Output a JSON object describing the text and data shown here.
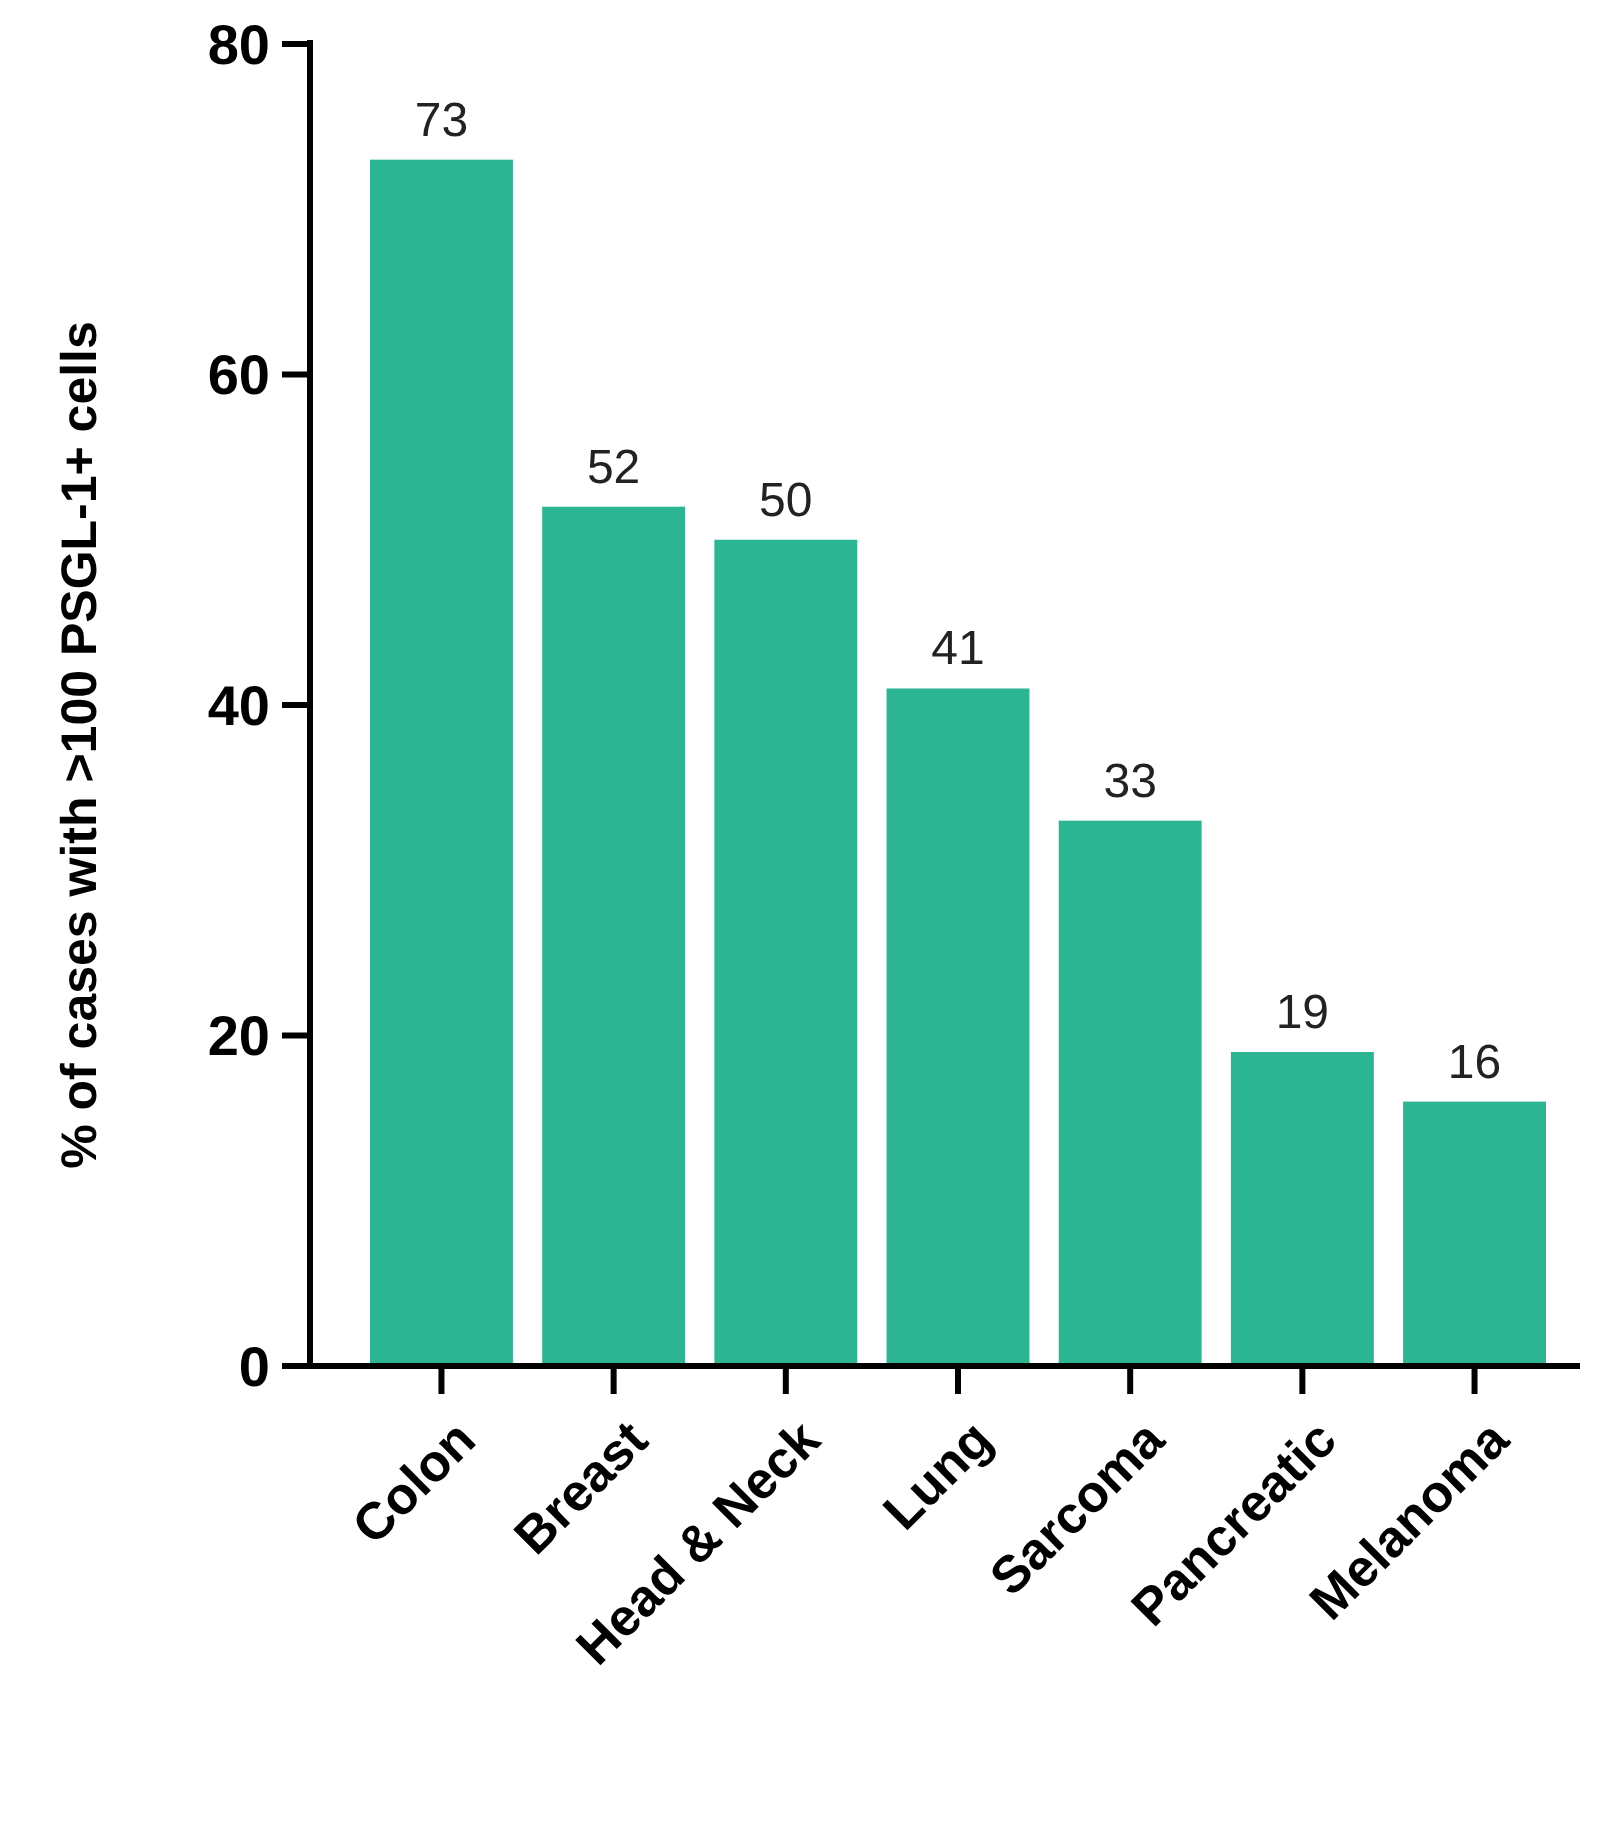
{
  "chart_data": {
    "type": "bar",
    "ylabel": "% of cases with >100 PSGL-1+ cells",
    "categories": [
      "Colon",
      "Breast",
      "Head & Neck",
      "Lung",
      "Sarcoma",
      "Pancreatic",
      "Melanoma"
    ],
    "values": [
      73,
      52,
      50,
      41,
      33,
      19,
      16
    ],
    "color": "#2cb592",
    "ylim": [
      0,
      80
    ],
    "yticks": [
      0,
      20,
      40,
      60,
      80
    ],
    "data_labels": true,
    "grid": false
  }
}
